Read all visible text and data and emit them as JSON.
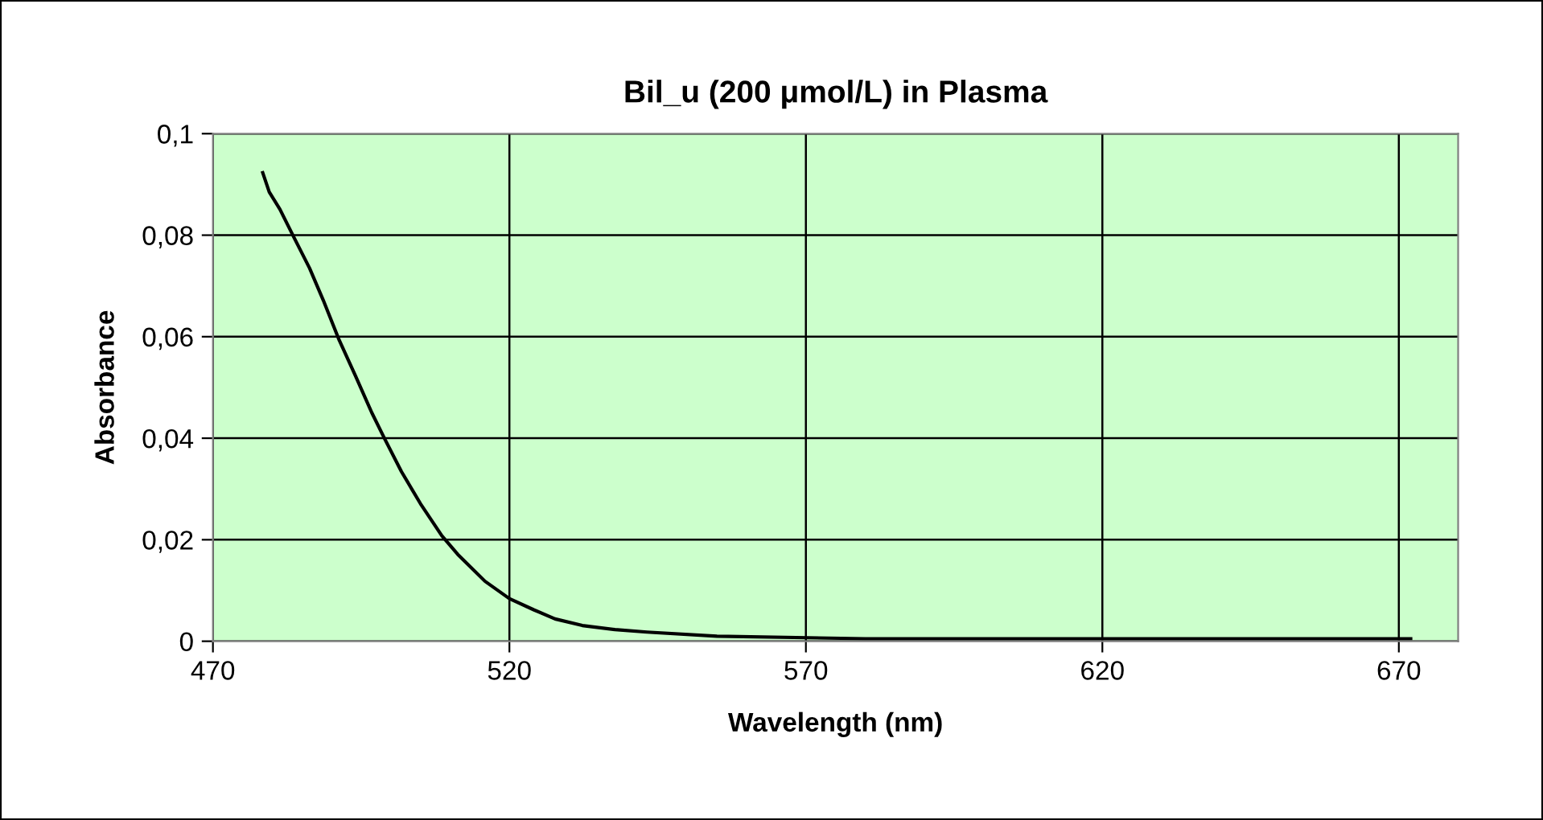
{
  "chart_data": {
    "type": "line",
    "title": "Bil_u (200 μmol/L) in Plasma",
    "xlabel": "Wavelength (nm)",
    "ylabel": "Absorbance",
    "x": [
      478.4,
      479.5,
      481.3,
      483.6,
      486.3,
      488.6,
      491.3,
      494.0,
      496.8,
      499.0,
      501.8,
      505.0,
      508.6,
      511.3,
      515.9,
      520.0,
      524.1,
      527.7,
      532.3,
      537.8,
      543.2,
      555,
      580,
      620,
      672
    ],
    "series": [
      {
        "color": "#000000",
        "values": [
          0.0923,
          0.0885,
          0.0851,
          0.0797,
          0.0735,
          0.0672,
          0.0593,
          0.0524,
          0.045,
          0.0398,
          0.0334,
          0.0271,
          0.0208,
          0.0171,
          0.0118,
          0.0084,
          0.0062,
          0.0044,
          0.0031,
          0.0023,
          0.0018,
          0.001,
          0.0005,
          0.0005,
          0.0005
        ]
      }
    ],
    "xlim": [
      470,
      680
    ],
    "xticks": [
      470,
      520,
      570,
      620,
      670
    ],
    "ylim": [
      0,
      0.1
    ],
    "yticks": [
      {
        "value": 0,
        "label": "0"
      },
      {
        "value": 0.02,
        "label": "0,02"
      },
      {
        "value": 0.04,
        "label": "0,04"
      },
      {
        "value": 0.06,
        "label": "0,06"
      },
      {
        "value": 0.08,
        "label": "0,08"
      },
      {
        "value": 0.1,
        "label": "0,1"
      }
    ],
    "grid": true,
    "legend": false,
    "marker": "none",
    "line_style": "solid"
  }
}
